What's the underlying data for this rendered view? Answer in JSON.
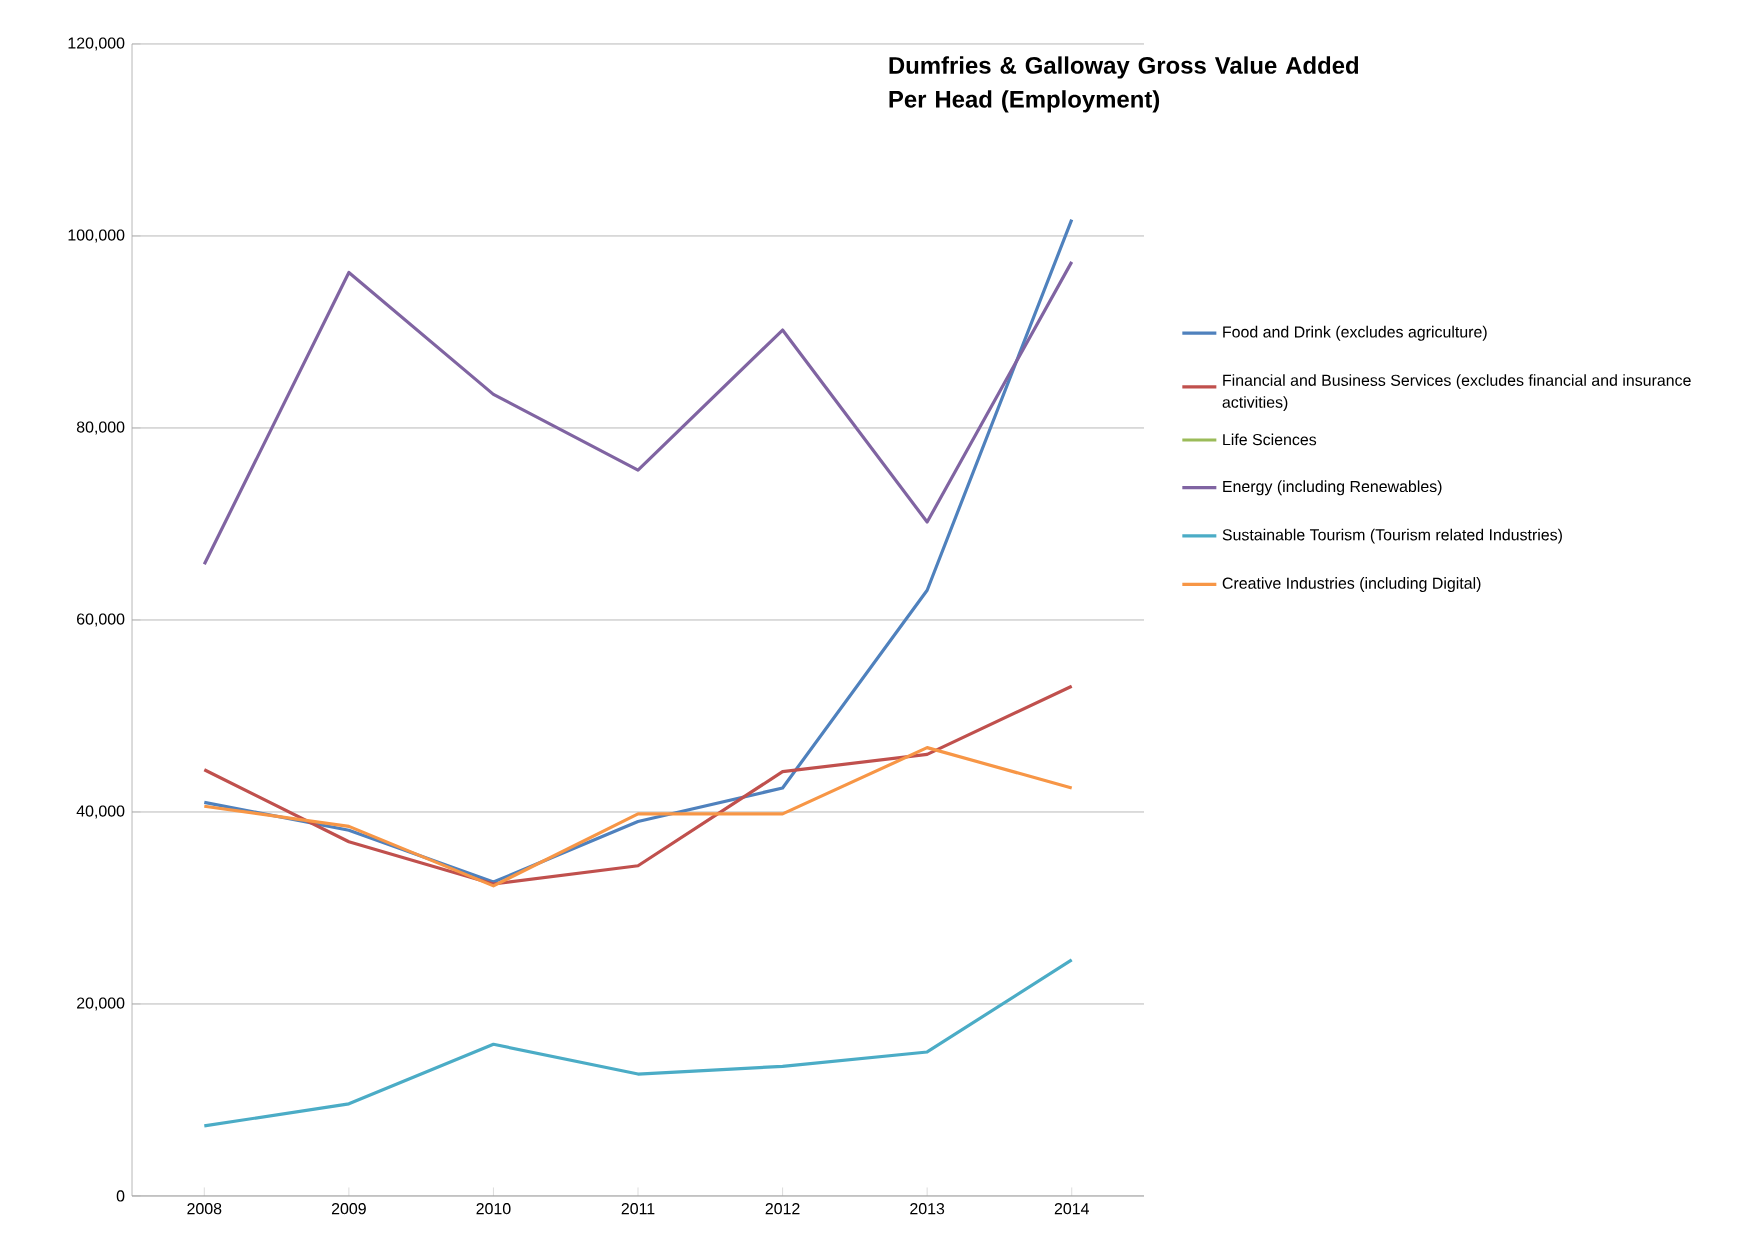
{
  "chart_data": {
    "type": "line",
    "title": "Dumfries & Galloway Gross Value Added Per Head (Employment)",
    "categories": [
      "2008",
      "2009",
      "2010",
      "2011",
      "2012",
      "2013",
      "2014"
    ],
    "series": [
      {
        "name": "Food and Drink (excludes agriculture)",
        "color": "#4f81bd",
        "values": [
          41000,
          38100,
          32700,
          39000,
          42500,
          63100,
          101700
        ]
      },
      {
        "name": "Financial and Business Services (excludes financial and insurance activities)",
        "color": "#c0504d",
        "values": [
          44400,
          36900,
          32500,
          34400,
          44200,
          46000,
          53100
        ]
      },
      {
        "name": "Life Sciences",
        "color": "#9bbb59",
        "values": [
          null,
          null,
          null,
          null,
          null,
          null,
          null
        ]
      },
      {
        "name": "Energy (including Renewables)",
        "color": "#8064a2",
        "values": [
          65800,
          96200,
          83500,
          75600,
          90200,
          70200,
          97300
        ]
      },
      {
        "name": "Sustainable Tourism (Tourism related Industries)",
        "color": "#4bacc6",
        "values": [
          7300,
          9600,
          15800,
          12700,
          13500,
          15000,
          24600
        ]
      },
      {
        "name": "Creative Industries (including Digital)",
        "color": "#f79646",
        "values": [
          40600,
          38500,
          32300,
          39800,
          39800,
          46700,
          42500
        ]
      }
    ],
    "ylim": [
      0,
      120000
    ],
    "yticks": [
      {
        "value": 0,
        "label": "0"
      },
      {
        "value": 20000,
        "label": "20,000"
      },
      {
        "value": 40000,
        "label": "40,000"
      },
      {
        "value": 60000,
        "label": "60,000"
      },
      {
        "value": 80000,
        "label": "80,000"
      },
      {
        "value": 100000,
        "label": "100,000"
      },
      {
        "value": 120000,
        "label": "120,000"
      }
    ],
    "grid": "y",
    "legend": "right",
    "marker": "none",
    "line_style": "solid"
  }
}
